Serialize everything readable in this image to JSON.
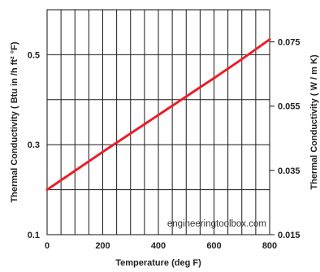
{
  "chart_data": {
    "type": "line",
    "xlabel": "Temperature (deg F)",
    "ylabel": "Thermal Conductivity ( Btu in /h ft² °F)",
    "y2label": "Thermal Conductivity ( W / m K)",
    "xlim": [
      0,
      800
    ],
    "ylim": [
      0.1,
      0.6
    ],
    "y2lim": [
      0.015,
      0.085
    ],
    "x_ticks": [
      0,
      200,
      400,
      600,
      800
    ],
    "x_tick_labels": [
      "0",
      "200",
      "400",
      "600",
      "800"
    ],
    "y_ticks": [
      0.1,
      0.3,
      0.5
    ],
    "y_tick_labels": [
      "0.1",
      "0.3",
      "0.5"
    ],
    "y2_ticks": [
      0.015,
      0.035,
      0.055,
      0.075
    ],
    "y2_tick_labels": [
      "0.015",
      "0.035",
      "0.055",
      "0.075"
    ],
    "x_minor_grid_step": 50,
    "y_grid": [
      0.2,
      0.3,
      0.4,
      0.5
    ],
    "grid": true,
    "line_color": "#e8202a",
    "series": [
      {
        "x": [
          0,
          100,
          200,
          300,
          400,
          500,
          600,
          700,
          800
        ],
        "y": [
          0.2,
          0.242,
          0.284,
          0.325,
          0.366,
          0.407,
          0.448,
          0.49,
          0.534
        ]
      }
    ],
    "watermark": "engineeringtoolbox.com"
  }
}
